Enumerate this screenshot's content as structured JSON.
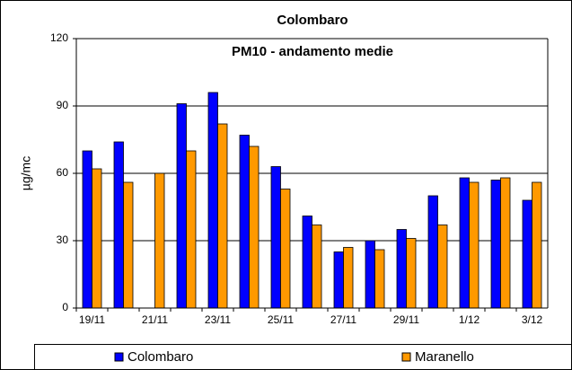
{
  "chart_data": {
    "type": "bar",
    "title": "Colombaro",
    "subtitle": "PM10 - andamento medie",
    "y_label": "µg/mc",
    "categories": [
      "19/11",
      null,
      "21/11",
      null,
      "23/11",
      null,
      "25/11",
      null,
      "27/11",
      null,
      "29/11",
      null,
      "1/12",
      null,
      "3/12"
    ],
    "series": [
      {
        "name": "Colombaro",
        "color": "#0000ff",
        "values": [
          70,
          74,
          null,
          91,
          96,
          77,
          63,
          41,
          25,
          30,
          35,
          50,
          58,
          57,
          48
        ]
      },
      {
        "name": "Maranello",
        "color": "#ff9900",
        "values": [
          62,
          56,
          60,
          70,
          82,
          72,
          53,
          37,
          27,
          26,
          31,
          37,
          56,
          58,
          56
        ]
      }
    ],
    "ylim": [
      0,
      120
    ],
    "yticks": [
      0,
      30,
      60,
      90,
      120
    ],
    "grid": true,
    "legend": "bottom"
  }
}
